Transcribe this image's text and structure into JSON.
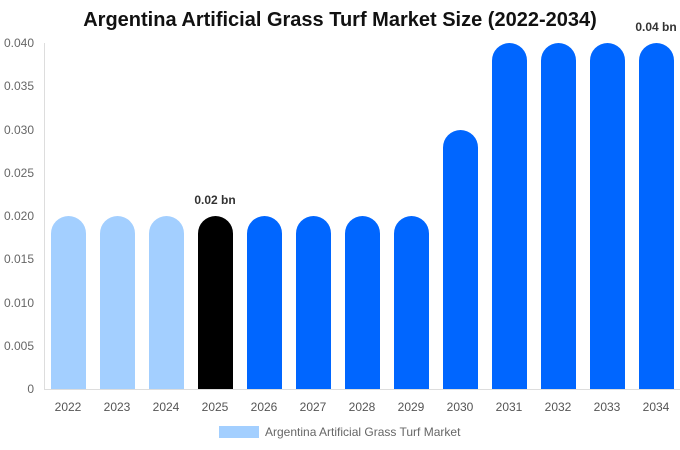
{
  "chart_data": {
    "type": "bar",
    "title": "Argentina Artificial Grass Turf Market Size (2022-2034)",
    "xlabel": "",
    "ylabel": "",
    "categories": [
      "2022",
      "2023",
      "2024",
      "2025",
      "2026",
      "2027",
      "2028",
      "2029",
      "2030",
      "2031",
      "2032",
      "2033",
      "2034"
    ],
    "series": [
      {
        "name": "Argentina Artificial Grass Turf Market",
        "values": [
          0.02,
          0.02,
          0.02,
          0.02,
          0.02,
          0.02,
          0.02,
          0.02,
          0.03,
          0.04,
          0.04,
          0.04,
          0.04
        ]
      }
    ],
    "bar_colors": [
      "#a3cfff",
      "#a3cfff",
      "#a3cfff",
      "#000000",
      "#0066ff",
      "#0066ff",
      "#0066ff",
      "#0066ff",
      "#0066ff",
      "#0066ff",
      "#0066ff",
      "#0066ff",
      "#0066ff"
    ],
    "ylim": [
      0,
      0.04
    ],
    "yticks": [
      "0",
      "0.005",
      "0.010",
      "0.015",
      "0.020",
      "0.025",
      "0.030",
      "0.035",
      "0.040"
    ],
    "annotations": [
      {
        "category": "2025",
        "text": "0.02 bn"
      },
      {
        "category": "2034",
        "text": "0.04 bn"
      }
    ],
    "grid": false,
    "legend_position": "bottom"
  },
  "legend": {
    "label": "Argentina Artificial Grass Turf Market",
    "color": "#a3cfff"
  }
}
